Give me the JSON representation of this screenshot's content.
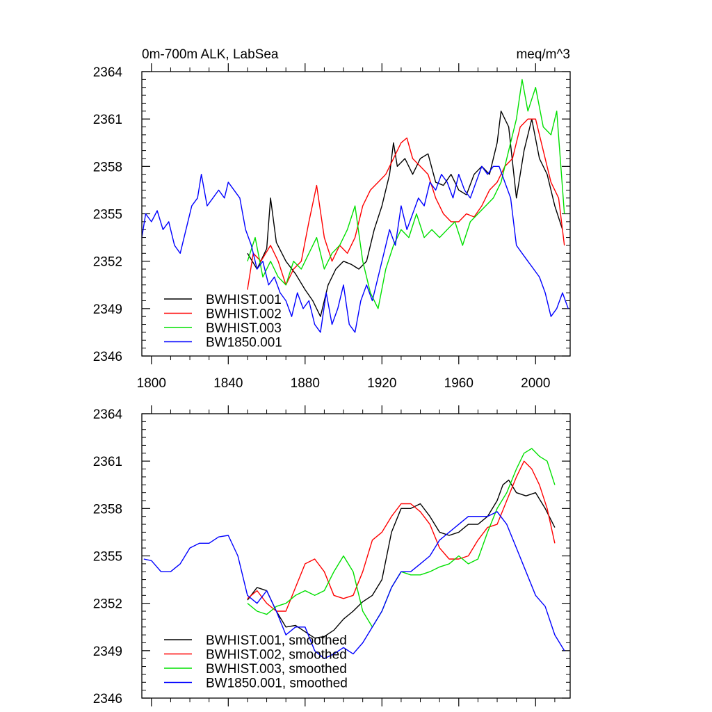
{
  "chart_data": [
    {
      "type": "line",
      "panel": "top",
      "title_left": "0m-700m ALK, LabSea",
      "title_right": "meq/m^3",
      "xlabel": "",
      "ylabel": "",
      "xlim": [
        1795,
        2018
      ],
      "ylim": [
        2346,
        2364
      ],
      "xticks": [
        1800,
        1840,
        1880,
        1920,
        1960,
        2000
      ],
      "xtick_labels": [
        "1800",
        "1840",
        "1880",
        "1920",
        "1960",
        "2000"
      ],
      "yticks": [
        2346,
        2349,
        2352,
        2355,
        2358,
        2361,
        2364
      ],
      "ytick_labels": [
        "2346",
        "2349",
        "2352",
        "2355",
        "2358",
        "2361",
        "2364"
      ],
      "legend_position": "bottom-left",
      "series": [
        {
          "name": "BWHIST.001",
          "color": "#000000",
          "x": [
            1850,
            1855,
            1860,
            1862,
            1865,
            1870,
            1875,
            1880,
            1884,
            1888,
            1892,
            1896,
            1900,
            1904,
            1908,
            1912,
            1916,
            1920,
            1924,
            1926,
            1928,
            1932,
            1936,
            1940,
            1944,
            1948,
            1952,
            1956,
            1960,
            1964,
            1968,
            1972,
            1976,
            1980,
            1982,
            1986,
            1990,
            1994,
            1998,
            2002,
            2006,
            2010,
            2014
          ],
          "values": [
            2352.5,
            2351.5,
            2352.8,
            2356.0,
            2353.2,
            2352.0,
            2351.2,
            2350.2,
            2349.5,
            2348.5,
            2350.5,
            2351.5,
            2352.0,
            2351.8,
            2351.5,
            2352.0,
            2354.0,
            2355.5,
            2357.5,
            2359.5,
            2358.0,
            2358.5,
            2357.5,
            2358.5,
            2358.8,
            2357.0,
            2356.8,
            2357.5,
            2356.5,
            2356.2,
            2357.5,
            2358.0,
            2357.5,
            2359.5,
            2361.5,
            2360.5,
            2356.0,
            2359.0,
            2361.0,
            2358.5,
            2357.5,
            2355.5,
            2354.0
          ]
        },
        {
          "name": "BWHIST.002",
          "color": "#ff0000",
          "x": [
            1850,
            1853,
            1857,
            1862,
            1866,
            1870,
            1874,
            1878,
            1882,
            1886,
            1890,
            1894,
            1898,
            1902,
            1906,
            1910,
            1914,
            1918,
            1922,
            1926,
            1930,
            1933,
            1936,
            1940,
            1944,
            1948,
            1952,
            1956,
            1960,
            1964,
            1968,
            1972,
            1976,
            1980,
            1984,
            1988,
            1992,
            1996,
            2000,
            2004,
            2008,
            2012,
            2015
          ],
          "values": [
            2350.2,
            2352.5,
            2352.0,
            2353.0,
            2352.0,
            2350.5,
            2351.5,
            2352.0,
            2354.5,
            2356.8,
            2353.5,
            2352.0,
            2353.0,
            2352.5,
            2353.5,
            2355.5,
            2356.5,
            2357.0,
            2357.5,
            2358.5,
            2359.5,
            2359.8,
            2358.5,
            2358.0,
            2357.5,
            2356.0,
            2355.0,
            2354.5,
            2354.5,
            2355.0,
            2354.8,
            2355.5,
            2356.5,
            2357.0,
            2358.0,
            2358.5,
            2360.5,
            2361.0,
            2361.0,
            2359.0,
            2357.0,
            2356.0,
            2353.0
          ]
        },
        {
          "name": "BWHIST.003",
          "color": "#00e000",
          "x": [
            1850,
            1854,
            1858,
            1862,
            1866,
            1870,
            1874,
            1878,
            1882,
            1886,
            1890,
            1894,
            1898,
            1902,
            1906,
            1910,
            1914,
            1918,
            1922,
            1926,
            1930,
            1934,
            1938,
            1942,
            1946,
            1950,
            1954,
            1958,
            1962,
            1966,
            1970,
            1974,
            1978,
            1982,
            1986,
            1990,
            1993,
            1996,
            2000,
            2004,
            2008,
            2011,
            2015
          ],
          "values": [
            2352.0,
            2353.5,
            2351.0,
            2352.0,
            2351.0,
            2350.5,
            2352.0,
            2351.5,
            2352.5,
            2353.5,
            2351.5,
            2352.5,
            2353.0,
            2354.0,
            2355.5,
            2352.0,
            2350.0,
            2349.0,
            2351.5,
            2353.0,
            2354.0,
            2353.5,
            2355.0,
            2353.5,
            2354.0,
            2353.5,
            2354.0,
            2354.5,
            2353.0,
            2354.5,
            2355.0,
            2355.5,
            2356.0,
            2357.0,
            2359.0,
            2361.0,
            2363.5,
            2361.5,
            2363.0,
            2360.5,
            2360.0,
            2361.5,
            2355.0
          ]
        },
        {
          "name": "BW1850.001",
          "color": "#0000ff",
          "x": [
            1795,
            1797,
            1800,
            1803,
            1806,
            1809,
            1812,
            1815,
            1818,
            1821,
            1824,
            1826,
            1829,
            1832,
            1835,
            1838,
            1840,
            1843,
            1846,
            1849,
            1852,
            1855,
            1858,
            1861,
            1864,
            1867,
            1870,
            1873,
            1876,
            1879,
            1882,
            1885,
            1888,
            1891,
            1894,
            1897,
            1900,
            1903,
            1906,
            1909,
            1912,
            1915,
            1918,
            1921,
            1924,
            1927,
            1930,
            1933,
            1936,
            1939,
            1942,
            1945,
            1948,
            1951,
            1954,
            1957,
            1960,
            1963,
            1966,
            1969,
            1972,
            1975,
            1978,
            1981,
            1984,
            1987,
            1990,
            1993,
            1996,
            1999,
            2002,
            2005,
            2008,
            2011,
            2014,
            2017
          ],
          "values": [
            2353.5,
            2355.0,
            2354.5,
            2355.2,
            2354.0,
            2354.5,
            2353.0,
            2352.5,
            2354.0,
            2355.5,
            2356.0,
            2357.5,
            2355.5,
            2356.0,
            2356.5,
            2356.0,
            2357.0,
            2356.5,
            2356.0,
            2354.0,
            2353.0,
            2351.5,
            2352.0,
            2350.5,
            2351.0,
            2350.0,
            2349.5,
            2348.5,
            2350.0,
            2349.0,
            2349.5,
            2348.0,
            2347.5,
            2350.0,
            2348.0,
            2349.0,
            2350.5,
            2348.0,
            2347.5,
            2349.5,
            2350.5,
            2349.5,
            2351.0,
            2352.5,
            2354.0,
            2353.0,
            2355.5,
            2354.0,
            2355.0,
            2356.0,
            2355.5,
            2357.0,
            2356.5,
            2357.5,
            2357.0,
            2356.0,
            2357.5,
            2356.5,
            2356.0,
            2357.0,
            2358.0,
            2357.5,
            2358.0,
            2358.0,
            2357.0,
            2356.0,
            2353.0,
            2352.5,
            2352.0,
            2351.5,
            2351.0,
            2350.0,
            2348.5,
            2349.0,
            2350.0,
            2349.0
          ]
        }
      ]
    },
    {
      "type": "line",
      "panel": "bottom",
      "title_left": "",
      "title_right": "",
      "xlabel": "",
      "ylabel": "",
      "xlim": [
        1795,
        2018
      ],
      "ylim": [
        2346,
        2364
      ],
      "xticks": [
        1800,
        1840,
        1880,
        1920,
        1960,
        2000
      ],
      "xtick_labels": [],
      "yticks": [
        2346,
        2349,
        2352,
        2355,
        2358,
        2361,
        2364
      ],
      "ytick_labels": [
        "2346",
        "2349",
        "2352",
        "2355",
        "2358",
        "2361",
        "2364"
      ],
      "legend_position": "bottom-left",
      "series": [
        {
          "name": "BWHIST.001, smoothed",
          "color": "#000000",
          "x": [
            1850,
            1855,
            1860,
            1865,
            1870,
            1875,
            1880,
            1885,
            1890,
            1895,
            1900,
            1905,
            1910,
            1915,
            1920,
            1925,
            1930,
            1935,
            1940,
            1945,
            1950,
            1955,
            1960,
            1965,
            1970,
            1975,
            1980,
            1983,
            1986,
            1990,
            1995,
            2000,
            2005,
            2010
          ],
          "values": [
            2352.2,
            2353.0,
            2352.8,
            2351.5,
            2350.5,
            2350.6,
            2350.2,
            2349.8,
            2349.9,
            2350.3,
            2351.0,
            2351.5,
            2352.1,
            2352.5,
            2353.5,
            2356.5,
            2358.0,
            2358.0,
            2358.3,
            2357.5,
            2356.5,
            2356.3,
            2356.5,
            2357.0,
            2357.0,
            2357.5,
            2358.5,
            2359.5,
            2359.8,
            2359.0,
            2358.8,
            2359.0,
            2358.0,
            2356.8
          ]
        },
        {
          "name": "BWHIST.002, smoothed",
          "color": "#ff0000",
          "x": [
            1850,
            1855,
            1860,
            1865,
            1870,
            1875,
            1880,
            1885,
            1890,
            1895,
            1900,
            1905,
            1910,
            1915,
            1920,
            1925,
            1930,
            1935,
            1940,
            1945,
            1950,
            1955,
            1960,
            1965,
            1970,
            1975,
            1980,
            1985,
            1990,
            1994,
            1998,
            2002,
            2006,
            2010
          ],
          "values": [
            2352.3,
            2352.8,
            2352.0,
            2351.5,
            2351.5,
            2353.0,
            2354.5,
            2354.8,
            2354.0,
            2352.5,
            2352.3,
            2352.5,
            2354.0,
            2356.0,
            2356.5,
            2357.5,
            2358.3,
            2358.3,
            2357.8,
            2357.0,
            2355.5,
            2354.8,
            2354.8,
            2355.0,
            2356.0,
            2356.8,
            2357.0,
            2358.5,
            2360.0,
            2361.0,
            2360.5,
            2359.5,
            2358.0,
            2355.8
          ]
        },
        {
          "name": "BWHIST.003, smoothed",
          "color": "#00e000",
          "x": [
            1850,
            1855,
            1860,
            1865,
            1870,
            1875,
            1880,
            1885,
            1890,
            1895,
            1900,
            1905,
            1910,
            1915,
            1920,
            1925,
            1930,
            1935,
            1940,
            1945,
            1950,
            1955,
            1960,
            1965,
            1970,
            1975,
            1980,
            1985,
            1990,
            1994,
            1998,
            2002,
            2006,
            2010
          ],
          "values": [
            2352.0,
            2351.5,
            2351.3,
            2351.8,
            2352.0,
            2352.5,
            2352.8,
            2352.5,
            2352.8,
            2354.0,
            2355.0,
            2354.0,
            2351.5,
            2350.5,
            2351.5,
            2353.0,
            2354.0,
            2353.8,
            2353.8,
            2354.0,
            2354.3,
            2354.5,
            2355.0,
            2354.5,
            2354.8,
            2356.5,
            2358.0,
            2359.0,
            2360.5,
            2361.5,
            2361.8,
            2361.3,
            2361.0,
            2359.5
          ]
        },
        {
          "name": "BW1850.001, smoothed",
          "color": "#0000ff",
          "x": [
            1796,
            1800,
            1805,
            1810,
            1815,
            1820,
            1825,
            1830,
            1835,
            1840,
            1845,
            1850,
            1855,
            1860,
            1865,
            1870,
            1875,
            1880,
            1885,
            1890,
            1895,
            1900,
            1905,
            1910,
            1915,
            1920,
            1925,
            1930,
            1935,
            1940,
            1945,
            1950,
            1955,
            1960,
            1965,
            1970,
            1975,
            1980,
            1985,
            1990,
            1995,
            2000,
            2005,
            2010,
            2015
          ],
          "values": [
            2354.8,
            2354.7,
            2354.0,
            2354.0,
            2354.5,
            2355.5,
            2355.8,
            2355.8,
            2356.2,
            2356.3,
            2355.0,
            2352.5,
            2352.0,
            2352.8,
            2351.5,
            2350.0,
            2350.5,
            2350.5,
            2349.0,
            2348.5,
            2348.8,
            2349.2,
            2348.8,
            2349.5,
            2350.5,
            2351.5,
            2353.0,
            2354.0,
            2354.0,
            2354.5,
            2355.0,
            2356.0,
            2356.5,
            2357.0,
            2357.5,
            2357.5,
            2357.5,
            2357.8,
            2357.0,
            2355.5,
            2354.0,
            2352.5,
            2351.8,
            2350.0,
            2349.0
          ]
        }
      ]
    }
  ]
}
